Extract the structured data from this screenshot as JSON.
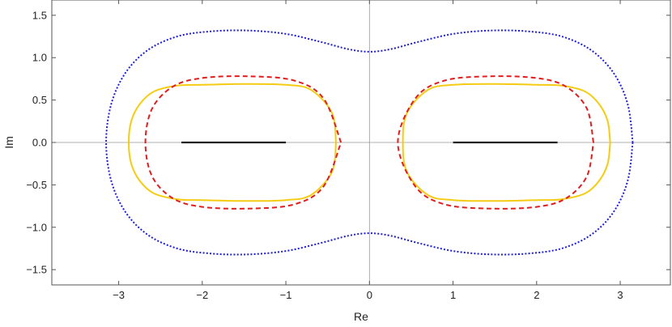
{
  "chart_data": {
    "type": "line",
    "title": "",
    "xlabel": "Re",
    "ylabel": "Im",
    "xlim": [
      -3.8,
      3.6
    ],
    "ylim": [
      -1.68,
      1.68
    ],
    "xticks": [
      -3,
      -2,
      -1,
      0,
      1,
      2,
      3
    ],
    "xtick_labels": [
      "−3",
      "−2",
      "−1",
      "0",
      "1",
      "2",
      "3"
    ],
    "yticks": [
      -1.5,
      -1.0,
      -0.5,
      0.0,
      0.5,
      1.0,
      1.5
    ],
    "ytick_labels": [
      "−1.5",
      "−1.0",
      "−0.5",
      "0.0",
      "0.5",
      "1.0",
      "1.5"
    ],
    "grid": false,
    "axes_through_origin": true,
    "colors": {
      "blue": "#1f1fd6",
      "gold": "#f5cc14",
      "red": "#e01e1e",
      "black": "#222222",
      "axis": "#999999",
      "frame": "#555555"
    },
    "series": [
      {
        "color_key": "blue",
        "style": "dotted",
        "x": [
          3.15,
          3.09,
          2.92,
          2.65,
          2.3,
          1.9,
          1.45,
          1.0,
          0.6,
          0.25,
          0.0,
          -0.25,
          -0.6,
          -1.0,
          -1.45,
          -1.9,
          -2.3,
          -2.65,
          -2.92,
          -3.09,
          -3.15,
          -3.09,
          -2.92,
          -2.65,
          -2.3,
          -1.9,
          -1.45,
          -1.0,
          -0.6,
          -0.25,
          0.0,
          0.25,
          0.6,
          1.0,
          1.45,
          1.9,
          2.3,
          2.65,
          2.92,
          3.09,
          3.15
        ],
        "y": [
          0.0,
          0.45,
          0.82,
          1.09,
          1.25,
          1.31,
          1.32,
          1.28,
          1.19,
          1.1,
          1.07,
          1.1,
          1.19,
          1.28,
          1.32,
          1.31,
          1.25,
          1.09,
          0.82,
          0.45,
          0.0,
          -0.45,
          -0.82,
          -1.09,
          -1.25,
          -1.31,
          -1.32,
          -1.28,
          -1.19,
          -1.1,
          -1.07,
          -1.1,
          -1.19,
          -1.28,
          -1.32,
          -1.31,
          -1.25,
          -1.09,
          -0.82,
          -0.45,
          0.0
        ]
      },
      {
        "color_key": "gold",
        "style": "solid",
        "x": [
          2.88,
          2.85,
          2.75,
          2.58,
          2.3,
          2.0,
          1.5,
          1.0,
          0.7,
          0.45,
          0.4,
          0.45,
          0.7,
          1.0,
          1.5,
          2.0,
          2.3,
          2.58,
          2.75,
          2.85,
          2.88
        ],
        "y": [
          0.0,
          0.25,
          0.45,
          0.6,
          0.67,
          0.68,
          0.69,
          0.68,
          0.62,
          0.35,
          0.0,
          -0.35,
          -0.62,
          -0.68,
          -0.69,
          -0.68,
          -0.67,
          -0.6,
          -0.45,
          -0.25,
          0.0
        ]
      },
      {
        "color_key": "gold",
        "style": "solid",
        "x": [
          -0.4,
          -0.45,
          -0.7,
          -1.0,
          -1.5,
          -2.0,
          -2.3,
          -2.58,
          -2.75,
          -2.85,
          -2.88,
          -2.85,
          -2.75,
          -2.58,
          -2.3,
          -2.0,
          -1.5,
          -1.0,
          -0.7,
          -0.45,
          -0.4
        ],
        "y": [
          0.0,
          0.35,
          0.62,
          0.68,
          0.69,
          0.68,
          0.67,
          0.6,
          0.45,
          0.25,
          0.0,
          -0.25,
          -0.45,
          -0.6,
          -0.67,
          -0.68,
          -0.69,
          -0.68,
          -0.62,
          -0.35,
          0.0
        ]
      },
      {
        "color_key": "red",
        "style": "dashed",
        "x": [
          2.68,
          2.6,
          2.35,
          2.0,
          1.45,
          0.9,
          0.55,
          0.34,
          0.55,
          0.9,
          1.45,
          2.0,
          2.35,
          2.6,
          2.68
        ],
        "y": [
          0.0,
          0.4,
          0.66,
          0.76,
          0.78,
          0.73,
          0.52,
          0.0,
          -0.52,
          -0.73,
          -0.78,
          -0.76,
          -0.66,
          -0.4,
          0.0
        ]
      },
      {
        "color_key": "red",
        "style": "dashed",
        "x": [
          -0.34,
          -0.55,
          -0.9,
          -1.45,
          -2.0,
          -2.35,
          -2.6,
          -2.68,
          -2.6,
          -2.35,
          -2.0,
          -1.45,
          -0.9,
          -0.55,
          -0.34
        ],
        "y": [
          0.0,
          0.52,
          0.73,
          0.78,
          0.76,
          0.66,
          0.4,
          0.0,
          -0.4,
          -0.66,
          -0.76,
          -0.78,
          -0.73,
          -0.52,
          0.0
        ]
      },
      {
        "color_key": "black",
        "style": "solid",
        "x": [
          1.0,
          2.25
        ],
        "y": [
          0.0,
          0.0
        ]
      },
      {
        "color_key": "black",
        "style": "solid",
        "x": [
          -2.25,
          -1.0
        ],
        "y": [
          0.0,
          0.0
        ]
      }
    ]
  }
}
